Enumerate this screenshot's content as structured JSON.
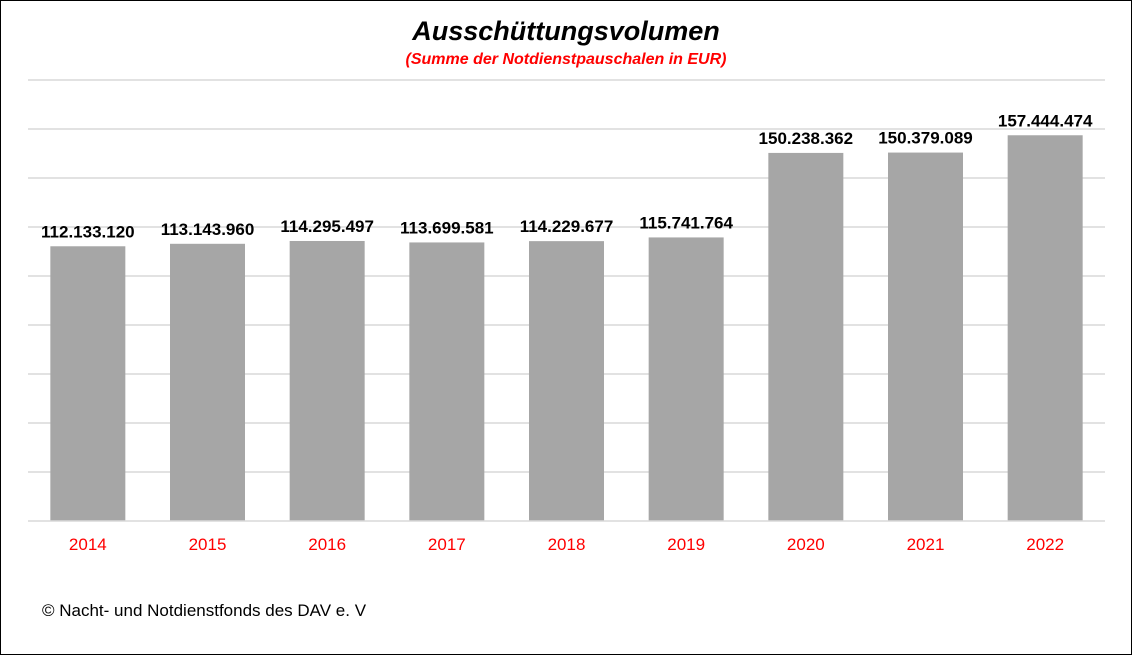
{
  "chart_data": {
    "type": "bar",
    "title": "Ausschüttungsvolumen",
    "subtitle": "(Summe der Notdienstpauschalen in EUR)",
    "categories": [
      "2014",
      "2015",
      "2016",
      "2017",
      "2018",
      "2019",
      "2020",
      "2021",
      "2022"
    ],
    "values": [
      112133120,
      113143960,
      114295497,
      113699581,
      114229677,
      115741764,
      150238362,
      150379089,
      157444474
    ],
    "value_labels": [
      "112.133.120",
      "113.143.960",
      "114.295.497",
      "113.699.581",
      "114.229.677",
      "115.741.764",
      "150.238.362",
      "150.379.089",
      "157.444.474"
    ],
    "xlabel": "",
    "ylabel": "",
    "ylim": [
      0,
      180000000
    ],
    "grid": true,
    "legend": "none",
    "colors": {
      "bar": "#a6a6a6",
      "tick_label": "#ff0000",
      "grid": "#d9d9d9"
    }
  },
  "footer": {
    "text": "© Nacht- und Notdienstfonds  des DAV e. V"
  }
}
